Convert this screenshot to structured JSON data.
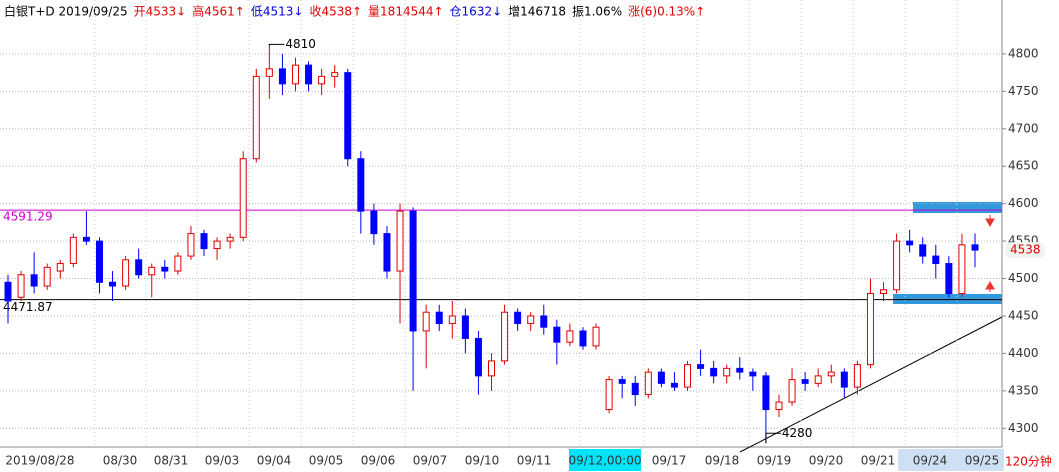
{
  "chart_data": {
    "type": "candlestick",
    "header": [
      {
        "text": "白银T+D 2019/09/25",
        "color": "#000000"
      },
      {
        "text": "开4533↓",
        "color": "#e00000"
      },
      {
        "text": "高4561↑",
        "color": "#e00000"
      },
      {
        "text": "低4513↓",
        "color": "#0000e0"
      },
      {
        "text": "收4538↑",
        "color": "#e00000"
      },
      {
        "text": "量1814544↑",
        "color": "#e00000"
      },
      {
        "text": "仓1632↓",
        "color": "#0000e0"
      },
      {
        "text": "增146718",
        "color": "#000000"
      },
      {
        "text": "振1.06%",
        "color": "#000000"
      },
      {
        "text": "涨(6)0.13%↑",
        "color": "#e00000"
      }
    ],
    "dates": [
      "2019/08/28",
      "08/30",
      "08/31",
      "09/03",
      "09/04",
      "09/05",
      "09/06",
      "09/07",
      "09/10",
      "09/11",
      "09/12,00:00",
      "09/17",
      "09/18",
      "09/19",
      "09/20",
      "09/21",
      "09/24",
      "09/25"
    ],
    "period_label": "120分钟",
    "candles": [
      [
        4495,
        4505,
        4440,
        4470
      ],
      [
        4475,
        4510,
        4470,
        4505
      ],
      [
        4505,
        4535,
        4480,
        4490
      ],
      [
        4490,
        4520,
        4485,
        4515
      ],
      [
        4510,
        4525,
        4500,
        4520
      ],
      [
        4520,
        4560,
        4515,
        4555
      ],
      [
        4555,
        4590,
        4545,
        4550
      ],
      [
        4550,
        4555,
        4480,
        4495
      ],
      [
        4495,
        4510,
        4470,
        4490
      ],
      [
        4490,
        4530,
        4485,
        4525
      ],
      [
        4525,
        4540,
        4500,
        4505
      ],
      [
        4505,
        4520,
        4475,
        4515
      ],
      [
        4515,
        4525,
        4500,
        4510
      ],
      [
        4510,
        4535,
        4505,
        4530
      ],
      [
        4530,
        4570,
        4525,
        4560
      ],
      [
        4560,
        4565,
        4530,
        4540
      ],
      [
        4540,
        4555,
        4525,
        4550
      ],
      [
        4550,
        4560,
        4540,
        4555
      ],
      [
        4555,
        4670,
        4550,
        4660
      ],
      [
        4660,
        4780,
        4655,
        4770
      ],
      [
        4770,
        4810,
        4740,
        4780
      ],
      [
        4780,
        4800,
        4745,
        4760
      ],
      [
        4760,
        4795,
        4750,
        4785
      ],
      [
        4785,
        4790,
        4750,
        4760
      ],
      [
        4760,
        4780,
        4745,
        4770
      ],
      [
        4770,
        4785,
        4755,
        4775
      ],
      [
        4775,
        4780,
        4650,
        4660
      ],
      [
        4660,
        4670,
        4560,
        4590
      ],
      [
        4590,
        4600,
        4545,
        4560
      ],
      [
        4560,
        4570,
        4500,
        4510
      ],
      [
        4510,
        4600,
        4440,
        4590
      ],
      [
        4590,
        4595,
        4350,
        4430
      ],
      [
        4430,
        4465,
        4380,
        4455
      ],
      [
        4455,
        4465,
        4430,
        4440
      ],
      [
        4440,
        4470,
        4420,
        4450
      ],
      [
        4450,
        4460,
        4400,
        4420
      ],
      [
        4420,
        4430,
        4345,
        4370
      ],
      [
        4370,
        4400,
        4350,
        4390
      ],
      [
        4390,
        4465,
        4385,
        4455
      ],
      [
        4455,
        4460,
        4430,
        4440
      ],
      [
        4440,
        4455,
        4430,
        4450
      ],
      [
        4450,
        4465,
        4425,
        4435
      ],
      [
        4435,
        4445,
        4385,
        4415
      ],
      [
        4415,
        4440,
        4410,
        4430
      ],
      [
        4430,
        4435,
        4405,
        4410
      ],
      [
        4410,
        4440,
        4405,
        4435
      ],
      [
        4325,
        4370,
        4320,
        4365
      ],
      [
        4365,
        4370,
        4340,
        4360
      ],
      [
        4360,
        4370,
        4330,
        4345
      ],
      [
        4345,
        4380,
        4340,
        4375
      ],
      [
        4375,
        4380,
        4355,
        4360
      ],
      [
        4360,
        4375,
        4350,
        4355
      ],
      [
        4355,
        4390,
        4350,
        4385
      ],
      [
        4385,
        4405,
        4370,
        4380
      ],
      [
        4380,
        4390,
        4360,
        4370
      ],
      [
        4370,
        4385,
        4360,
        4380
      ],
      [
        4380,
        4395,
        4365,
        4375
      ],
      [
        4375,
        4380,
        4350,
        4370
      ],
      [
        4370,
        4375,
        4280,
        4325
      ],
      [
        4325,
        4345,
        4315,
        4335
      ],
      [
        4335,
        4380,
        4330,
        4365
      ],
      [
        4365,
        4375,
        4350,
        4360
      ],
      [
        4360,
        4380,
        4355,
        4370
      ],
      [
        4370,
        4385,
        4360,
        4375
      ],
      [
        4375,
        4380,
        4340,
        4355
      ],
      [
        4355,
        4390,
        4345,
        4385
      ],
      [
        4385,
        4500,
        4380,
        4480
      ],
      [
        4480,
        4495,
        4470,
        4485
      ],
      [
        4485,
        4560,
        4480,
        4550
      ],
      [
        4550,
        4565,
        4535,
        4545
      ],
      [
        4545,
        4555,
        4520,
        4530
      ],
      [
        4530,
        4545,
        4500,
        4520
      ],
      [
        4520,
        4530,
        4475,
        4480
      ],
      [
        4480,
        4560,
        4475,
        4545
      ],
      [
        4545,
        4560,
        4515,
        4538
      ]
    ],
    "up_color": "#e00000",
    "down_color": "#0000ff",
    "ylim": [
      4275,
      4872
    ],
    "yticks": [
      4300,
      4350,
      4400,
      4450,
      4500,
      4550,
      4600,
      4650,
      4700,
      4750,
      4800
    ],
    "grid": true,
    "high_label": 4810,
    "low_label": 4280,
    "last_price": 4538,
    "levels": [
      {
        "value": 4591.29,
        "label": "4591.29",
        "color": "#cc00cc"
      },
      {
        "value": 4471.87,
        "label": "4471.87",
        "color": "#000000"
      }
    ]
  }
}
